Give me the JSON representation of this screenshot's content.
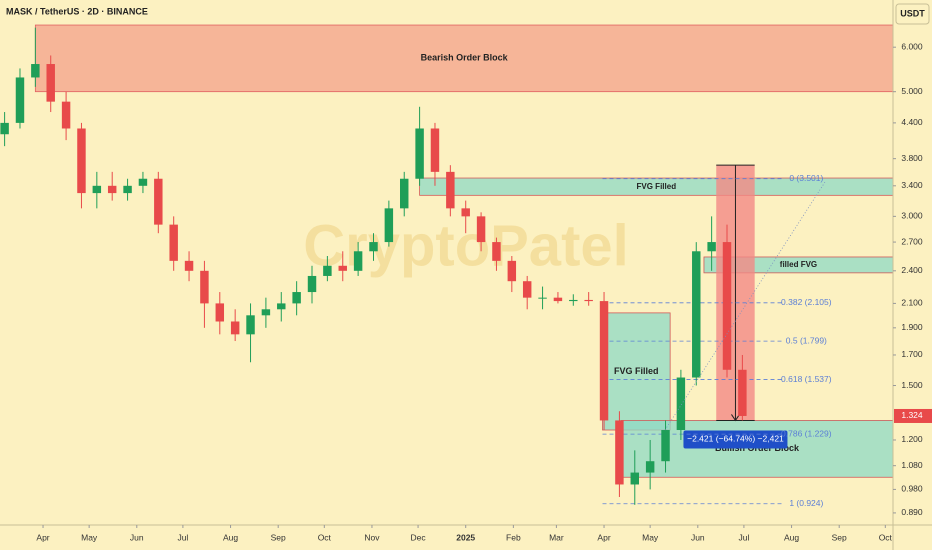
{
  "header": {
    "title": "MASK / TetherUS · 2D · BINANCE",
    "currency": "USDT",
    "watermark": "CryptoPatel"
  },
  "chart_data": {
    "type": "candlestick",
    "log_scale": true,
    "background": "#fcf1c1",
    "up_color": "#1f9e58",
    "down_color": "#e84a4a",
    "xlim": [
      -28,
      553
    ],
    "ylim": [
      0.847,
      7.28
    ],
    "xticks": [
      {
        "value": 0,
        "label": "Apr"
      },
      {
        "value": 30,
        "label": "May"
      },
      {
        "value": 61,
        "label": "Jun"
      },
      {
        "value": 91,
        "label": "Jul"
      },
      {
        "value": 122,
        "label": "Aug"
      },
      {
        "value": 153,
        "label": "Sep"
      },
      {
        "value": 183,
        "label": "Oct"
      },
      {
        "value": 214,
        "label": "Nov"
      },
      {
        "value": 244,
        "label": "Dec"
      },
      {
        "value": 275,
        "label": "2025"
      },
      {
        "value": 306,
        "label": "Feb"
      },
      {
        "value": 334,
        "label": "Mar"
      },
      {
        "value": 365,
        "label": "Apr"
      },
      {
        "value": 395,
        "label": "May"
      },
      {
        "value": 426,
        "label": "Jun"
      },
      {
        "value": 456,
        "label": "Jul"
      },
      {
        "value": 487,
        "label": "Aug"
      },
      {
        "value": 518,
        "label": "Sep"
      },
      {
        "value": 548,
        "label": "Oct"
      }
    ],
    "yticks": [
      {
        "value": 6,
        "label": "6.000"
      },
      {
        "value": 5,
        "label": "5.000"
      },
      {
        "value": 4.4,
        "label": "4.400"
      },
      {
        "value": 3.8,
        "label": "3.800"
      },
      {
        "value": 3.4,
        "label": "3.400"
      },
      {
        "value": 3,
        "label": "3.000"
      },
      {
        "value": 2.7,
        "label": "2.700"
      },
      {
        "value": 2.4,
        "label": "2.400"
      },
      {
        "value": 2.1,
        "label": "2.100"
      },
      {
        "value": 1.9,
        "label": "1.900"
      },
      {
        "value": 1.7,
        "label": "1.700"
      },
      {
        "value": 1.5,
        "label": "1.500"
      },
      {
        "value": 1.2,
        "label": "1.200"
      },
      {
        "value": 1.08,
        "label": "1.080"
      },
      {
        "value": 0.98,
        "label": "0.980"
      },
      {
        "value": 0.89,
        "label": "0.890"
      }
    ],
    "candles": {
      "x": [
        -25,
        -15,
        -5,
        5,
        15,
        25,
        35,
        45,
        55,
        65,
        75,
        85,
        95,
        105,
        115,
        125,
        135,
        145,
        155,
        165,
        175,
        185,
        195,
        205,
        215,
        225,
        235,
        245,
        255,
        265,
        275,
        285,
        295,
        305,
        315,
        325,
        335,
        345,
        355,
        365,
        375,
        385,
        395,
        405,
        415,
        425,
        435,
        445,
        455
      ],
      "open": [
        4.2,
        4.4,
        5.3,
        5.6,
        4.8,
        4.3,
        3.3,
        3.4,
        3.3,
        3.4,
        3.5,
        2.9,
        2.5,
        2.4,
        2.1,
        1.95,
        1.85,
        2.0,
        2.05,
        2.1,
        2.2,
        2.35,
        2.45,
        2.4,
        2.6,
        2.7,
        3.1,
        3.5,
        4.3,
        3.6,
        3.1,
        3.0,
        2.7,
        2.5,
        2.3,
        2.15,
        2.15,
        2.12,
        2.13,
        2.12,
        1.3,
        1.0,
        1.05,
        1.1,
        1.25,
        1.55,
        2.6,
        2.7,
        1.6
      ],
      "high": [
        4.6,
        5.5,
        6.5,
        5.8,
        5.0,
        4.4,
        3.6,
        3.6,
        3.5,
        3.6,
        3.6,
        3.0,
        2.6,
        2.5,
        2.2,
        2.05,
        2.1,
        2.15,
        2.2,
        2.3,
        2.45,
        2.55,
        2.6,
        2.7,
        2.8,
        3.2,
        3.6,
        4.7,
        4.4,
        3.7,
        3.2,
        3.05,
        2.75,
        2.55,
        2.35,
        2.25,
        2.2,
        2.18,
        2.2,
        2.2,
        1.35,
        1.15,
        1.2,
        1.3,
        1.6,
        2.7,
        3.0,
        2.9,
        1.7
      ],
      "low": [
        4.0,
        4.3,
        5.1,
        4.6,
        4.1,
        3.1,
        3.1,
        3.2,
        3.2,
        3.3,
        2.8,
        2.4,
        2.3,
        1.9,
        1.85,
        1.8,
        1.65,
        1.9,
        1.95,
        2.0,
        2.1,
        2.3,
        2.3,
        2.35,
        2.5,
        2.65,
        3.0,
        3.4,
        3.4,
        3.0,
        2.8,
        2.6,
        2.4,
        2.2,
        2.05,
        2.05,
        2.1,
        2.08,
        2.08,
        1.25,
        0.95,
        0.92,
        0.98,
        1.05,
        1.2,
        1.5,
        2.4,
        1.55,
        1.3
      ],
      "close": [
        4.4,
        5.3,
        5.6,
        4.8,
        4.3,
        3.3,
        3.4,
        3.3,
        3.4,
        3.5,
        2.9,
        2.5,
        2.4,
        2.1,
        1.95,
        1.85,
        2.0,
        2.05,
        2.1,
        2.2,
        2.35,
        2.45,
        2.4,
        2.6,
        2.7,
        3.1,
        3.5,
        4.3,
        3.6,
        3.1,
        3.0,
        2.7,
        2.5,
        2.3,
        2.15,
        2.15,
        2.12,
        2.13,
        2.12,
        1.3,
        1.0,
        1.05,
        1.1,
        1.25,
        1.55,
        2.6,
        2.7,
        1.6,
        1.324
      ]
    },
    "zones": [
      {
        "label": "Bearish Order Block",
        "days": [
          -5,
          553
        ],
        "prices": [
          5.0,
          6.57
        ],
        "color": "#f4a08a"
      },
      {
        "label": "FVG Filled",
        "days": [
          245,
          553
        ],
        "prices": [
          3.27,
          3.51
        ],
        "color": "#8fd9c4"
      },
      {
        "label": "filled FVG",
        "days": [
          430,
          553
        ],
        "prices": [
          2.38,
          2.54
        ],
        "color": "#8fd9c4"
      },
      {
        "label": "FVG Filled",
        "days": [
          364,
          408
        ],
        "prices": [
          1.25,
          2.02
        ],
        "color": "#8fd9c4"
      },
      {
        "label": "Bullish Order Block",
        "days": [
          376,
          553
        ],
        "prices": [
          1.03,
          1.3
        ],
        "color": "#8fd9c4"
      }
    ],
    "fib": {
      "days": [
        364,
        481
      ],
      "color": "#5b7fd6",
      "levels": [
        0,
        0.382,
        0.5,
        0.618,
        0.786,
        1
      ],
      "values": [
        3.501,
        2.105,
        1.799,
        1.537,
        1.229,
        0.924
      ],
      "value_labels": [
        "0 (3.501)",
        "0.382 (2.105)",
        "0.5 (1.799)",
        "0.618 (1.537)",
        "0.786 (1.229)",
        "1 (0.924)"
      ]
    },
    "measure": {
      "days": [
        438,
        463
      ],
      "prices": [
        3.7,
        1.3
      ],
      "label": "−2.421 (−64.74%) −2,421",
      "color": "#f28a86"
    },
    "last_price": {
      "value": 1.324,
      "label": "1.324",
      "color": "#e84a4a"
    }
  }
}
